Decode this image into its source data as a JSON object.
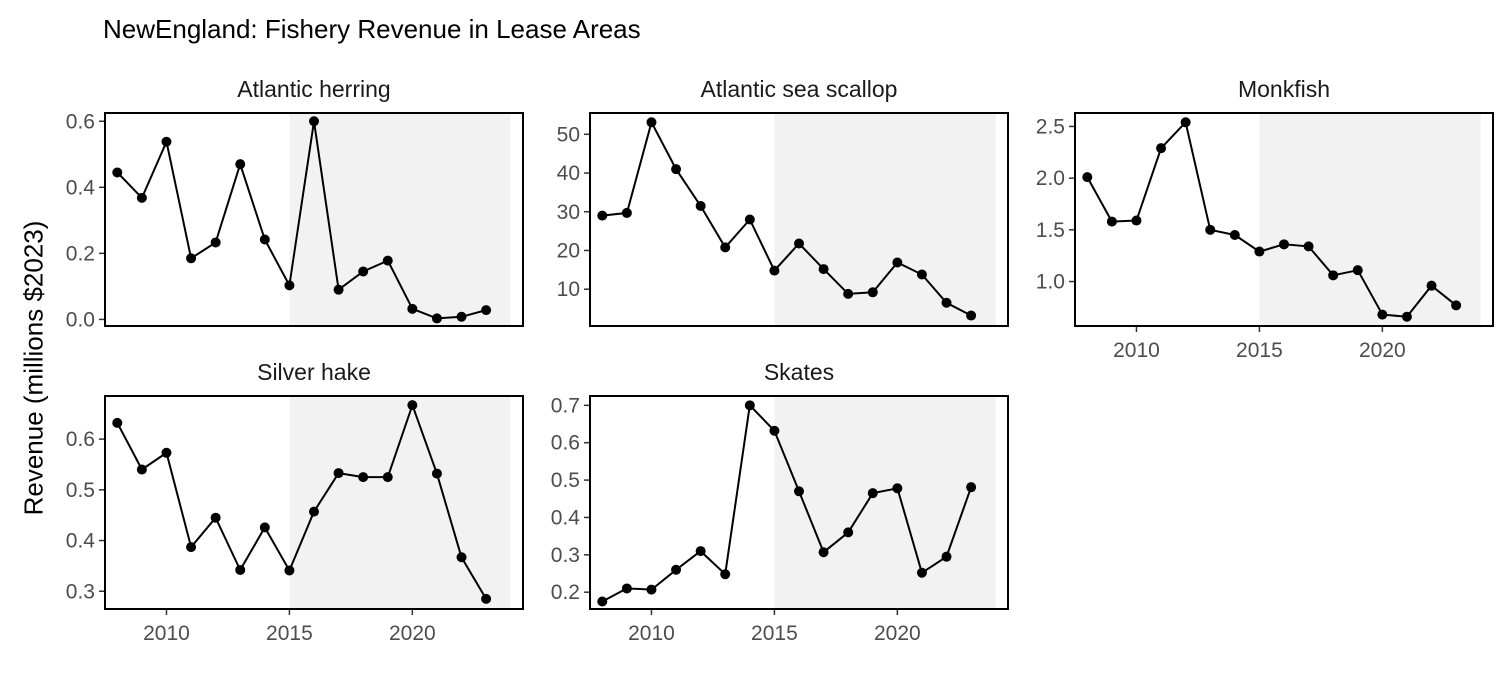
{
  "chart_data": {
    "type": "line",
    "title": "NewEngland: Fishery Revenue in Lease Areas",
    "ylabel": "Revenue (millions $2023)",
    "xlabel": "",
    "colors": {
      "line": "#000000",
      "point": "#000000",
      "shade": "#f2f2f2",
      "panel_border": "#000000",
      "tick_text": "#4d4d4d"
    },
    "shaded_period": [
      2015,
      2024
    ],
    "x_ticks": [
      2010,
      2015,
      2020
    ],
    "x_range": [
      2007.5,
      2024.5
    ],
    "panels": [
      {
        "name": "Atlantic herring",
        "ylim": [
          -0.02,
          0.625
        ],
        "y_ticks": [
          0.0,
          0.2,
          0.4,
          0.6
        ],
        "y_tick_labels": [
          "0.0",
          "0.2",
          "0.4",
          "0.6"
        ],
        "x": [
          2008,
          2009,
          2010,
          2011,
          2012,
          2013,
          2014,
          2015,
          2016,
          2017,
          2018,
          2019,
          2020,
          2021,
          2022,
          2023
        ],
        "values": [
          0.445,
          0.368,
          0.538,
          0.185,
          0.233,
          0.47,
          0.242,
          0.103,
          0.6,
          0.09,
          0.145,
          0.178,
          0.032,
          0.003,
          0.008,
          0.028
        ]
      },
      {
        "name": "Atlantic sea scallop",
        "ylim": [
          0.5,
          55.5
        ],
        "y_ticks": [
          10,
          20,
          30,
          40,
          50
        ],
        "y_tick_labels": [
          "10",
          "20",
          "30",
          "40",
          "50"
        ],
        "x": [
          2008,
          2009,
          2010,
          2011,
          2012,
          2013,
          2014,
          2015,
          2016,
          2017,
          2018,
          2019,
          2020,
          2021,
          2022,
          2023
        ],
        "values": [
          29.0,
          29.7,
          53.1,
          41.0,
          31.5,
          20.8,
          28.0,
          14.8,
          21.8,
          15.2,
          8.8,
          9.2,
          16.9,
          13.8,
          6.5,
          3.2
        ]
      },
      {
        "name": "Monkfish",
        "ylim": [
          0.57,
          2.63
        ],
        "y_ticks": [
          1.0,
          1.5,
          2.0,
          2.5
        ],
        "y_tick_labels": [
          "1.0",
          "1.5",
          "2.0",
          "2.5"
        ],
        "x": [
          2008,
          2009,
          2010,
          2011,
          2012,
          2013,
          2014,
          2015,
          2016,
          2017,
          2018,
          2019,
          2020,
          2021,
          2022,
          2023
        ],
        "values": [
          2.01,
          1.58,
          1.59,
          2.29,
          2.54,
          1.5,
          1.45,
          1.29,
          1.36,
          1.34,
          1.06,
          1.11,
          0.68,
          0.66,
          0.96,
          0.77
        ]
      },
      {
        "name": "Silver hake",
        "ylim": [
          0.265,
          0.685
        ],
        "y_ticks": [
          0.3,
          0.4,
          0.5,
          0.6
        ],
        "y_tick_labels": [
          "0.3",
          "0.4",
          "0.5",
          "0.6"
        ],
        "x": [
          2008,
          2009,
          2010,
          2011,
          2012,
          2013,
          2014,
          2015,
          2016,
          2017,
          2018,
          2019,
          2020,
          2021,
          2022,
          2023
        ],
        "values": [
          0.632,
          0.54,
          0.573,
          0.387,
          0.445,
          0.342,
          0.426,
          0.341,
          0.457,
          0.533,
          0.525,
          0.525,
          0.667,
          0.532,
          0.367,
          0.285
        ]
      },
      {
        "name": "Skates",
        "ylim": [
          0.155,
          0.725
        ],
        "y_ticks": [
          0.2,
          0.3,
          0.4,
          0.5,
          0.6,
          0.7
        ],
        "y_tick_labels": [
          "0.2",
          "0.3",
          "0.4",
          "0.5",
          "0.6",
          "0.7"
        ],
        "x": [
          2008,
          2009,
          2010,
          2011,
          2012,
          2013,
          2014,
          2015,
          2016,
          2017,
          2018,
          2019,
          2020,
          2021,
          2022,
          2023
        ],
        "values": [
          0.175,
          0.21,
          0.207,
          0.26,
          0.31,
          0.248,
          0.7,
          0.632,
          0.47,
          0.307,
          0.36,
          0.465,
          0.478,
          0.252,
          0.295,
          0.481
        ]
      }
    ]
  }
}
